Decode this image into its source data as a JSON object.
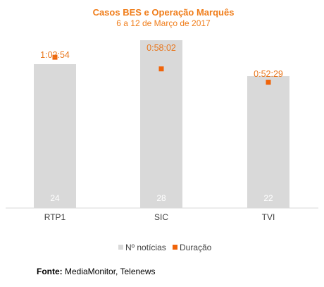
{
  "chart_data": {
    "type": "bar",
    "title": "Casos BES e Operação Marquês",
    "subtitle": "6 a 12 de Março de 2017",
    "categories": [
      "RTP1",
      "SIC",
      "TVI"
    ],
    "series": [
      {
        "name": "Nº notícias",
        "type": "bar",
        "values": [
          24,
          28,
          22
        ],
        "color": "#D9D9D9"
      },
      {
        "name": "Duração",
        "type": "scatter",
        "values_seconds": [
          3774,
          3482,
          3149
        ],
        "labels": [
          "1:02:54",
          "0:58:02",
          "0:52:29"
        ],
        "color": "#F0640A"
      }
    ],
    "bar_ylim": [
      0,
      30
    ],
    "duration_ylim_seconds": [
      0,
      4500
    ],
    "legend": "bottom",
    "grid": false
  },
  "source": {
    "label": "Fonte:",
    "text": "MediaMonitor, Telenews"
  }
}
